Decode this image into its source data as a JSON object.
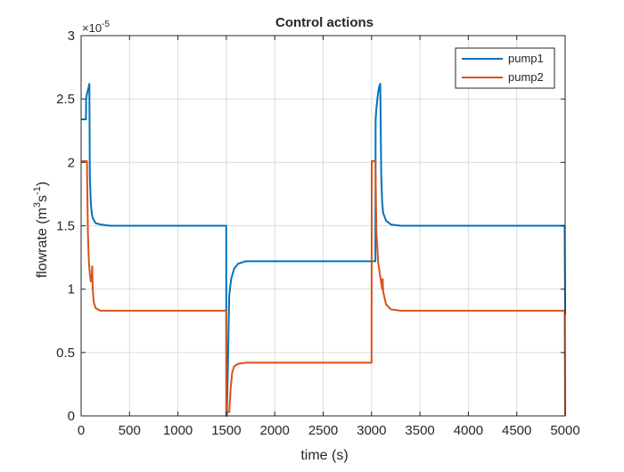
{
  "chart_data": {
    "type": "line",
    "title": "Control actions",
    "xlabel": "time (s)",
    "ylabel": {
      "base": "flowrate (m",
      "sup1": "3",
      "mid": "s",
      "sup2": "-1",
      "end": ")"
    },
    "exponent_label": {
      "base": "×10",
      "sup": "-5"
    },
    "xlim": [
      0,
      5000
    ],
    "ylim": [
      0,
      3
    ],
    "xticks": [
      0,
      500,
      1000,
      1500,
      2000,
      2500,
      3000,
      3500,
      4000,
      4500,
      5000
    ],
    "yticks": [
      0,
      0.5,
      1,
      1.5,
      2,
      2.5,
      3
    ],
    "ytick_labels": [
      "0",
      "0.5",
      "1",
      "1.5",
      "2",
      "2.5",
      "3"
    ],
    "grid": true,
    "legend_position": "top-right",
    "colors": {
      "pump1": "#0072BD",
      "pump2": "#D95319"
    },
    "series": [
      {
        "name": "pump1",
        "color": "#0072BD",
        "x": [
          0,
          50,
          52,
          60,
          70,
          80,
          85,
          90,
          100,
          110,
          120,
          150,
          200,
          300,
          1499,
          1500,
          1505,
          1515,
          1530,
          1550,
          1580,
          1620,
          1700,
          1800,
          2999,
          3000,
          3040,
          3042,
          3050,
          3060,
          3070,
          3080,
          3090,
          3100,
          3110,
          3120,
          3150,
          3200,
          3300,
          4995,
          5000
        ],
        "values": [
          2.34,
          2.34,
          2.5,
          2.54,
          2.57,
          2.6,
          2.62,
          1.9,
          1.68,
          1.6,
          1.56,
          1.52,
          1.51,
          1.5,
          1.5,
          0,
          0,
          0.35,
          0.95,
          1.08,
          1.16,
          1.2,
          1.22,
          1.22,
          1.22,
          1.22,
          1.22,
          2.34,
          2.42,
          2.5,
          2.56,
          2.6,
          2.62,
          1.9,
          1.68,
          1.6,
          1.54,
          1.51,
          1.5,
          1.5,
          0.8
        ]
      },
      {
        "name": "pump2",
        "color": "#D95319",
        "x": [
          0,
          60,
          70,
          80,
          90,
          100,
          110,
          115,
          120,
          130,
          150,
          200,
          300,
          1499,
          1500,
          1530,
          1545,
          1560,
          1580,
          1620,
          1700,
          1800,
          2999,
          3000,
          3002,
          3040,
          3050,
          3070,
          3100,
          3110,
          3115,
          3120,
          3150,
          3200,
          3300,
          4995,
          5000
        ],
        "values": [
          2.01,
          2.01,
          1.45,
          1.22,
          1.12,
          1.06,
          1.1,
          1.18,
          1.0,
          0.9,
          0.85,
          0.83,
          0.83,
          0.83,
          0.03,
          0.03,
          0.22,
          0.34,
          0.39,
          0.41,
          0.42,
          0.42,
          0.42,
          0.42,
          2.01,
          2.01,
          1.45,
          1.2,
          1.05,
          1.0,
          1.08,
          0.98,
          0.88,
          0.84,
          0.83,
          0.83,
          0
        ]
      }
    ]
  }
}
